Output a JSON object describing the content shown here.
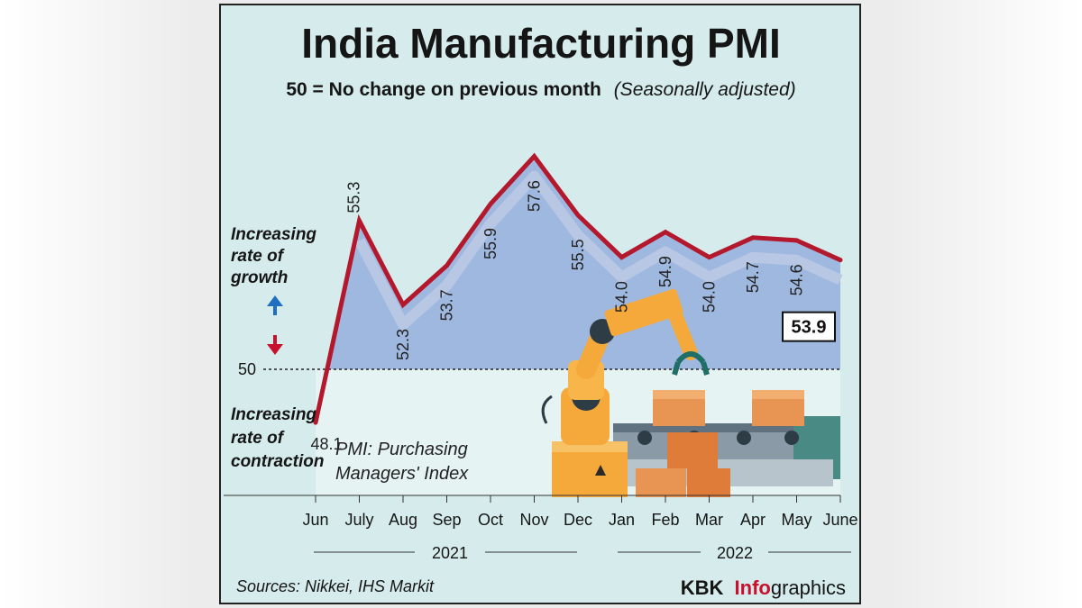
{
  "chart_data": {
    "type": "area",
    "title": "India Manufacturing PMI",
    "subtitle": "50 = No change on previous month",
    "subtitle_note": "(Seasonally adjusted)",
    "categories": [
      "Jun",
      "July",
      "Aug",
      "Sep",
      "Oct",
      "Nov",
      "Dec",
      "Jan",
      "Feb",
      "Mar",
      "Apr",
      "May",
      "June"
    ],
    "values": [
      48.1,
      55.3,
      52.3,
      53.7,
      55.9,
      57.6,
      55.5,
      54.0,
      54.9,
      54.0,
      54.7,
      54.6,
      53.9
    ],
    "labels": [
      "48.1",
      "55.3",
      "52.3",
      "53.7",
      "55.9",
      "57.6",
      "55.5",
      "54.0",
      "54.9",
      "54.0",
      "54.7",
      "54.6",
      "53.9"
    ],
    "baseline": 50,
    "baseline_label": "50",
    "ylim": [
      45.5,
      59
    ],
    "years": [
      "2021",
      "2022"
    ],
    "growth_label": [
      "Increasing",
      "rate of",
      "growth"
    ],
    "contraction_label": [
      "Increasing",
      "rate of",
      "contraction"
    ],
    "note": [
      "PMI: Purchasing",
      "Managers' Index"
    ],
    "source": "Sources: Nikkei, IHS Markit",
    "brand": {
      "prefix": "KBK",
      "accent": "Info",
      "suffix": "graphics"
    },
    "colors": {
      "line": "#b3182c",
      "area": "#9fb8df",
      "background": "#d6ecec",
      "lower_area": "#e6f3f3",
      "up_arrow": "#1f6fc0",
      "down_arrow": "#c8102e"
    }
  }
}
